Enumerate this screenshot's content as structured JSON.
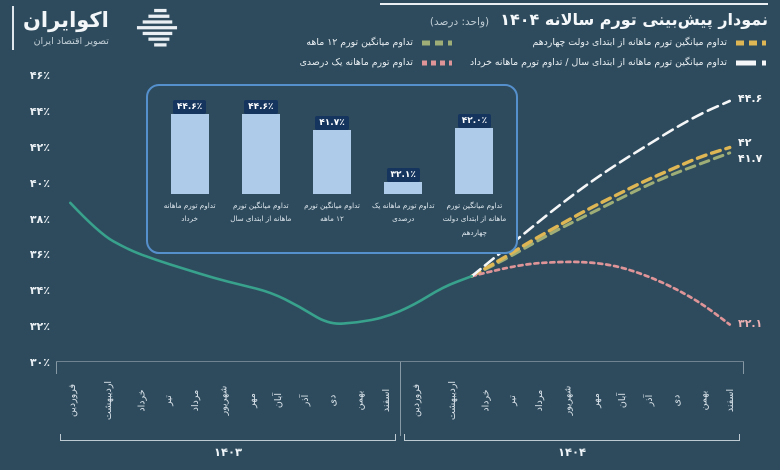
{
  "brand": {
    "name": "اکوایران",
    "tagline": "تصویر اقتصاد ایران"
  },
  "colors": {
    "background": "#2e4b5d",
    "inset_border": "#5590cd",
    "inset_bar": "#aecbe9",
    "value_chip_bg": "#16355e",
    "historical_line": "#38a28d"
  },
  "legend": [
    {
      "label": "تداوم میانگین تورم ماهانه از ابتدای دولت چهاردهم",
      "color": "#dfb654",
      "swatch_dash": "8 5"
    },
    {
      "label": "تداوم میانگین تورم ۱۲ ماهه",
      "color": "#9fae76",
      "swatch_dash": "8 5"
    },
    {
      "label": "تداوم میانگین تورم ماهانه از ابتدای سال / تداوم تورم ماهانه خرداد",
      "color": "#f4f6f7",
      "swatch_dash": "20 6"
    },
    {
      "label": "تداوم تورم ماهانه یک درصدی",
      "color": "#df9598",
      "swatch_dash": "5 4"
    }
  ],
  "chart_data": [
    {
      "type": "line",
      "title": "نمودار پیش‌بینی تورم سالانه ۱۴۰۴",
      "unit": "(واحد: درصد)",
      "grid": false,
      "legend_position": "top-right",
      "ylim": [
        30,
        46
      ],
      "y_tick_labels": [
        "۴۶٪",
        "۴۴٪",
        "۴۲٪",
        "۴۰٪",
        "۳۸٪",
        "۳۶٪",
        "۳۴٪",
        "۳۲٪",
        "۳۰٪"
      ],
      "x": [
        "فروردین",
        "اردیبهشت",
        "خرداد",
        "تیر",
        "مرداد",
        "شهریور",
        "مهر",
        "آبان",
        "آذر",
        "دی",
        "بهمن",
        "اسفند",
        "فروردین",
        "اردیبهشت",
        "خرداد",
        "تیر",
        "مرداد",
        "شهریور",
        "مهر",
        "آبان",
        "آذر",
        "دی",
        "بهمن",
        "اسفند"
      ],
      "year_groups": [
        {
          "label": "۱۴۰۳",
          "span": [
            0,
            11
          ]
        },
        {
          "label": "۱۴۰۴",
          "span": [
            12,
            23
          ]
        }
      ],
      "series": [
        {
          "key": "twelve_month_avg",
          "name": "تداوم میانگین تورم ۱۲ ماهه",
          "color": "#9fae76",
          "dash": "9 6",
          "width": 3,
          "start_index": 14,
          "values": [
            34.8,
            35.6,
            36.5,
            37.4,
            38.2,
            39.0,
            39.8,
            40.5,
            41.1,
            41.7
          ]
        },
        {
          "key": "gov14_avg",
          "name": "تداوم میانگین تورم ماهانه از ابتدای دولت چهاردهم",
          "color": "#dfb654",
          "dash": "9 6",
          "width": 3.4,
          "start_index": 14,
          "values": [
            34.8,
            35.7,
            36.7,
            37.6,
            38.5,
            39.3,
            40.1,
            40.8,
            41.5,
            42.0
          ]
        },
        {
          "key": "one_percent",
          "name": "تداوم تورم ماهانه یک درصدی",
          "color": "#df9598",
          "dash": "4 4",
          "width": 2.7,
          "start_index": 14,
          "values": [
            34.8,
            35.2,
            35.5,
            35.6,
            35.6,
            35.4,
            34.9,
            34.2,
            33.3,
            32.1
          ]
        },
        {
          "key": "monthly_from_khordad",
          "name": "تداوم میانگین تورم ماهانه از ابتدای سال / تداوم تورم ماهانه خرداد",
          "color": "#f4f6f7",
          "dash": "11 6",
          "width": 2.6,
          "start_index": 14,
          "values": [
            34.8,
            36.1,
            37.4,
            38.7,
            39.9,
            41.0,
            42.0,
            43.0,
            43.9,
            44.6
          ]
        },
        {
          "key": "historical",
          "color": "#38a28d",
          "dash": null,
          "width": 2.6,
          "start_index": 0,
          "values": [
            38.9,
            37.2,
            36.3,
            35.7,
            35.2,
            34.7,
            34.3,
            33.9,
            33.1,
            32.1,
            32.2,
            32.5,
            33.2,
            34.2,
            34.8
          ]
        }
      ],
      "end_labels": [
        {
          "text": "۴۴.۶",
          "value": 44.6,
          "dy": -2,
          "color": "#f4f6f7"
        },
        {
          "text": "۴۲",
          "value": 42.0,
          "dy": -5,
          "color": "#f4f6f7"
        },
        {
          "text": "۴۱.۷",
          "value": 41.7,
          "dy": 6,
          "color": "#f4f6f7"
        },
        {
          "text": "۳۲.۱",
          "value": 32.1,
          "dy": 0,
          "color": "#ecb0b2"
        }
      ]
    },
    {
      "type": "bar",
      "baseline": 30,
      "bar_color": "#aecbe9",
      "value_chip_bg": "#16355e",
      "categories": [
        "تداوم تورم ماهانه خرداد",
        "تداوم میانگین تورم ماهانه از ابتدای سال",
        "تداوم میانگین تورم ۱۲ ماهه",
        "تداوم تورم ماهانه یک درصدی",
        "تداوم میانگین تورم ماهانه از ابتدای دولت چهاردهم"
      ],
      "values": [
        44.6,
        44.6,
        41.7,
        32.1,
        42.0
      ],
      "value_labels": [
        "۴۴.۶٪",
        "۴۴.۶٪",
        "۴۱.۷٪",
        "۳۲.۱٪",
        "۴۲.۰٪"
      ]
    }
  ]
}
